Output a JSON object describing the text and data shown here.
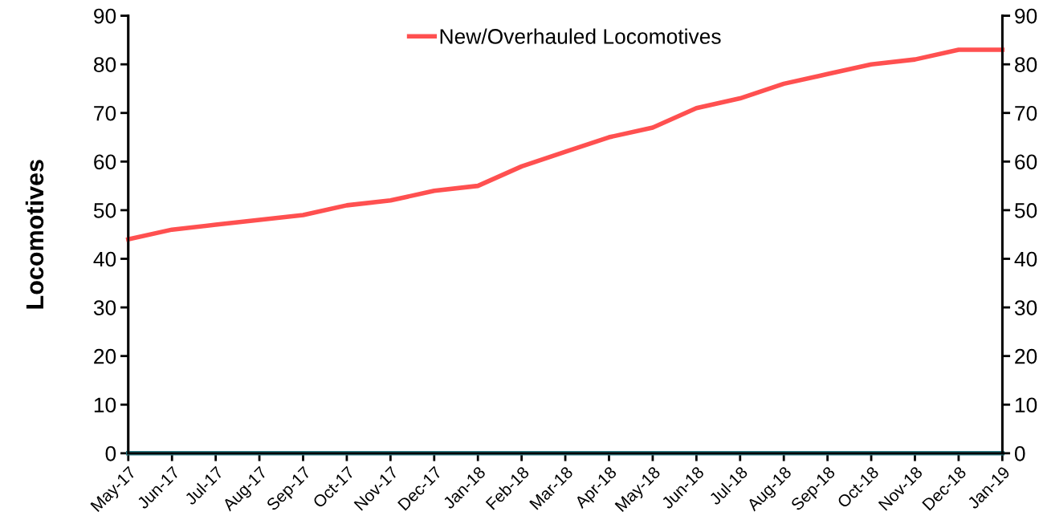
{
  "chart_data": {
    "type": "line",
    "ylabel": "Locomotives",
    "categories": [
      "May-17",
      "Jun-17",
      "Jul-17",
      "Aug-17",
      "Sep-17",
      "Oct-17",
      "Nov-17",
      "Dec-17",
      "Jan-18",
      "Feb-18",
      "Mar-18",
      "Apr-18",
      "May-18",
      "Jun-18",
      "Jul-18",
      "Aug-18",
      "Sep-18",
      "Oct-18",
      "Nov-18",
      "Dec-18",
      "Jan-19"
    ],
    "series": [
      {
        "name": "New/Overhauled Locomotives",
        "color": "#ff5050",
        "values": [
          44,
          46,
          47,
          48,
          49,
          51,
          52,
          54,
          55,
          59,
          62,
          65,
          67,
          71,
          73,
          76,
          78,
          80,
          81,
          83,
          83
        ]
      },
      {
        "color": "#2e7d86",
        "values": [
          0,
          0,
          0,
          0,
          0,
          0,
          0,
          0,
          0,
          0,
          0,
          0,
          0,
          0,
          0,
          0,
          0,
          0,
          0,
          0,
          0
        ]
      }
    ],
    "ylim": [
      0,
      90
    ],
    "yticks": [
      0,
      10,
      20,
      30,
      40,
      50,
      60,
      70,
      80,
      90
    ],
    "y2lim": [
      0,
      90
    ],
    "y2ticks": [
      0,
      10,
      20,
      30,
      40,
      50,
      60,
      70,
      80,
      90
    ],
    "grid": false,
    "legend": "top",
    "marker": "none",
    "line_style": "solid"
  }
}
